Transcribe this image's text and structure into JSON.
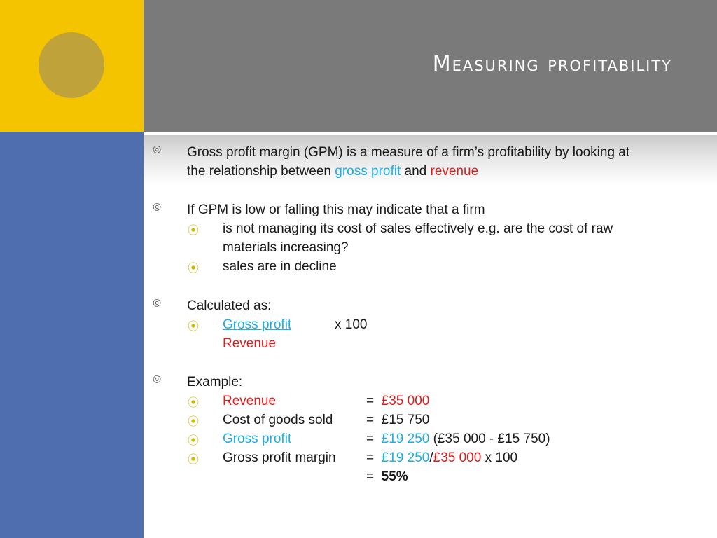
{
  "slide": {
    "title": "Measuring profitability",
    "points": [
      {
        "line1": "Gross profit margin (GPM) is a measure of a firm’s profitability by looking at",
        "line2_pre": "the relationship between ",
        "gross_profit": "gross profit",
        "and": " and ",
        "revenue": "revenue"
      },
      {
        "text": "If GPM is low or falling this may indicate that a firm",
        "sub": [
          {
            "line1": "is not managing its cost of sales effectively e.g. are the cost of raw",
            "line2": "materials increasing?"
          },
          {
            "line1": "sales are in decline"
          }
        ]
      },
      {
        "text": "Calculated as:",
        "numerator": "Gross profit ",
        "multiplier": "x 100",
        "denominator": "Revenue"
      },
      {
        "text": "Example:",
        "rows": [
          {
            "label": "Revenue",
            "eq": "=",
            "value": "£35 000"
          },
          {
            "label": "Cost of goods sold",
            "eq": "=",
            "value": "£15 750"
          },
          {
            "label": "Gross profit",
            "eq": "=",
            "value": "£19 250",
            "extra": " (£35 000 - £15 750)"
          },
          {
            "label": "Gross profit margin",
            "eq": "=",
            "v1": "£19 250",
            "slash": "/",
            "v2": "£35 000",
            "extra": " x 100"
          }
        ],
        "result": {
          "eq": "=",
          "value": "55%"
        }
      }
    ]
  },
  "colors": {
    "accent_cyan": "#1eaee2",
    "accent_red": "#e01b1b",
    "yellow": "#f5c400",
    "blue": "#4f6eb0",
    "gray": "#7a7a7a"
  },
  "icons": {
    "level1": "circled-ring-bullet-icon",
    "level2": "circled-dot-bullet-icon"
  }
}
